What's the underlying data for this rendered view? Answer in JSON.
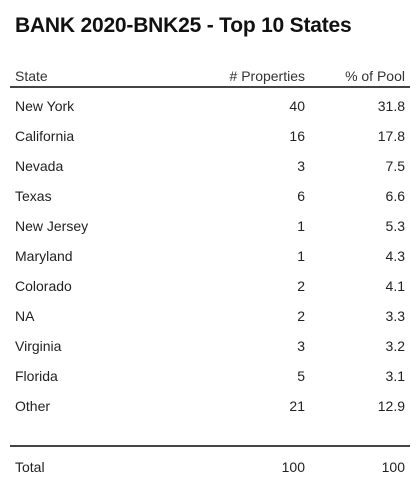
{
  "chart_data": {
    "type": "table",
    "title": "BANK 2020-BNK25 - Top 10 States",
    "columns": [
      "State",
      "# Properties",
      "% of Pool"
    ],
    "rows": [
      {
        "state": "New York",
        "properties": "40",
        "pool": "31.8"
      },
      {
        "state": "California",
        "properties": "16",
        "pool": "17.8"
      },
      {
        "state": "Nevada",
        "properties": "3",
        "pool": "7.5"
      },
      {
        "state": "Texas",
        "properties": "6",
        "pool": "6.6"
      },
      {
        "state": "New Jersey",
        "properties": "1",
        "pool": "5.3"
      },
      {
        "state": "Maryland",
        "properties": "1",
        "pool": "4.3"
      },
      {
        "state": "Colorado",
        "properties": "2",
        "pool": "4.1"
      },
      {
        "state": "NA",
        "properties": "2",
        "pool": "3.3"
      },
      {
        "state": "Virginia",
        "properties": "3",
        "pool": "3.2"
      },
      {
        "state": "Florida",
        "properties": "5",
        "pool": "3.1"
      },
      {
        "state": "Other",
        "properties": "21",
        "pool": "12.9"
      }
    ],
    "total": {
      "label": "Total",
      "properties": "100",
      "pool": "100"
    }
  }
}
